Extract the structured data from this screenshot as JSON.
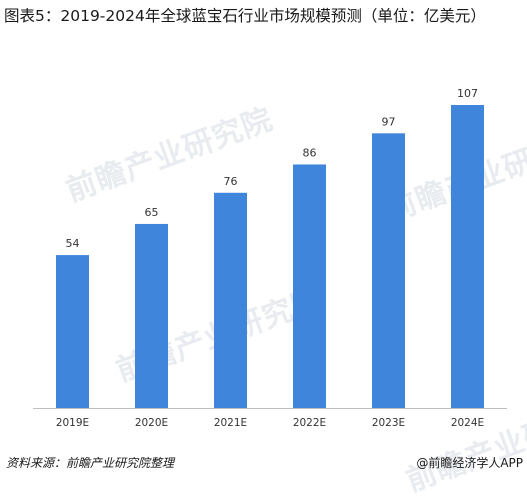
{
  "title": "图表5：2019-2024年全球蓝宝石行业市场规模预测（单位：亿美元）",
  "footer": {
    "source": "资料来源：前瞻产业研究院整理",
    "brand": "@前瞻经济学人APP"
  },
  "watermark": "前瞻产业研究院",
  "colors": {
    "bar": "#3f85dc",
    "axis": "#bfbfbf"
  },
  "chart_data": {
    "type": "bar",
    "title": "图表5：2019-2024年全球蓝宝石行业市场规模预测（单位：亿美元）",
    "categories": [
      "2019E",
      "2020E",
      "2021E",
      "2022E",
      "2023E",
      "2024E"
    ],
    "values": [
      54,
      65,
      76,
      86,
      97,
      107
    ],
    "xlabel": "",
    "ylabel": "",
    "ylim": [
      0,
      113
    ],
    "grid": false,
    "legend": "none"
  }
}
